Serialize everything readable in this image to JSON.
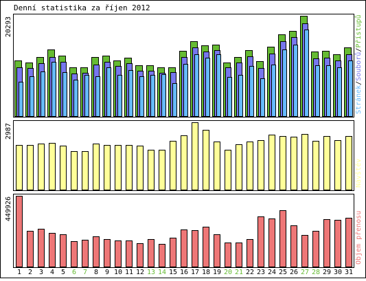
{
  "title": "Denní statistika za říjen 2012",
  "colors": {
    "pristupy": "#66bb33",
    "soubory": "#7777ee",
    "stranky": "#66bbff",
    "navstevy": "#ffff99",
    "objem": "#ee7777",
    "weekend_label": "#66bb33",
    "frame": "#000000"
  },
  "chart_data": [
    {
      "type": "bar",
      "panel": "hits",
      "categories": [
        "1",
        "2",
        "3",
        "4",
        "5",
        "6",
        "7",
        "8",
        "9",
        "10",
        "11",
        "12",
        "13",
        "14",
        "15",
        "16",
        "17",
        "18",
        "19",
        "20",
        "21",
        "22",
        "23",
        "24",
        "25",
        "26",
        "27",
        "28",
        "29",
        "30",
        "31"
      ],
      "weekend_days": [
        "6",
        "7",
        "13",
        "14",
        "20",
        "21",
        "27",
        "28"
      ],
      "ymax_label": "20293",
      "ylim": [
        0,
        20293
      ],
      "legend": [
        "Stránek",
        "/",
        "Souborů",
        "/",
        "Přístupů"
      ],
      "series": [
        {
          "name": "Přístupů",
          "values": [
            11200,
            10900,
            12000,
            13500,
            12300,
            9800,
            9900,
            11900,
            12300,
            11300,
            11800,
            10300,
            10300,
            9900,
            9900,
            13200,
            15200,
            14300,
            14500,
            10800,
            11900,
            13400,
            11100,
            14000,
            16500,
            17200,
            20293,
            13000,
            13200,
            12500,
            13900
          ]
        },
        {
          "name": "Souborů",
          "values": [
            9800,
            9700,
            10700,
            12000,
            11000,
            8600,
            8800,
            10400,
            11000,
            10200,
            10700,
            9200,
            9200,
            8800,
            8900,
            12000,
            13900,
            13000,
            13300,
            9800,
            10800,
            12100,
            9700,
            12700,
            15200,
            16000,
            18700,
            11700,
            11800,
            11200,
            12500
          ]
        },
        {
          "name": "Stránek",
          "values": [
            7000,
            8000,
            9100,
            11000,
            8900,
            7400,
            8300,
            8000,
            9900,
            8300,
            9300,
            8100,
            8300,
            8500,
            6700,
            10500,
            12500,
            11800,
            12500,
            7900,
            8300,
            10200,
            7600,
            10400,
            13500,
            14400,
            17500,
            10300,
            10300,
            9800,
            11200
          ]
        }
      ]
    },
    {
      "type": "bar",
      "panel": "visits",
      "categories": [
        "1",
        "2",
        "3",
        "4",
        "5",
        "6",
        "7",
        "8",
        "9",
        "10",
        "11",
        "12",
        "13",
        "14",
        "15",
        "16",
        "17",
        "18",
        "19",
        "20",
        "21",
        "22",
        "23",
        "24",
        "25",
        "26",
        "27",
        "28",
        "29",
        "30",
        "31"
      ],
      "ymax_label": "2987",
      "ylim": [
        0,
        2987
      ],
      "legend": [
        "Návštěv"
      ],
      "series": [
        {
          "name": "Návštěv",
          "values": [
            1980,
            1970,
            2030,
            2080,
            1950,
            1720,
            1720,
            2030,
            1980,
            1990,
            1990,
            1940,
            1780,
            1760,
            2160,
            2420,
            2987,
            2640,
            2130,
            1780,
            2010,
            2120,
            2200,
            2430,
            2380,
            2350,
            2460,
            2150,
            2380,
            2200,
            2370
          ]
        }
      ]
    },
    {
      "type": "bar",
      "panel": "traffic",
      "categories": [
        "1",
        "2",
        "3",
        "4",
        "5",
        "6",
        "7",
        "8",
        "9",
        "10",
        "11",
        "12",
        "13",
        "14",
        "15",
        "16",
        "17",
        "18",
        "19",
        "20",
        "21",
        "22",
        "23",
        "24",
        "25",
        "26",
        "27",
        "28",
        "29",
        "30",
        "31"
      ],
      "ymax_label": "449926",
      "ylim": [
        0,
        449926
      ],
      "legend": [
        "Objem přenosu"
      ],
      "series": [
        {
          "name": "Objem přenosu",
          "values": [
            449926,
            225000,
            240000,
            213000,
            207000,
            162000,
            170000,
            193000,
            174000,
            167000,
            167000,
            148000,
            176000,
            144000,
            182000,
            236000,
            230000,
            252000,
            207000,
            152000,
            152000,
            175000,
            321000,
            307000,
            358000,
            263000,
            202000,
            229000,
            302000,
            295000,
            310000
          ]
        }
      ]
    }
  ]
}
